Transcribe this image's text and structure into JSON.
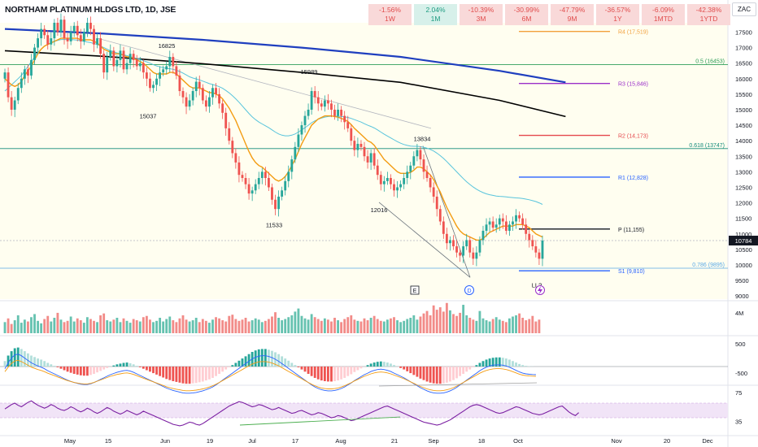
{
  "header": {
    "title": "NORTHAM PLATINUM HLDGS LTD, 1D, JSE",
    "currency": "ZAC"
  },
  "performance": [
    {
      "value": "-1.56%",
      "period": "1W",
      "sign": "neg"
    },
    {
      "value": "2.04%",
      "period": "1M",
      "sign": "pos"
    },
    {
      "value": "-10.39%",
      "period": "3M",
      "sign": "neg"
    },
    {
      "value": "-30.99%",
      "period": "6M",
      "sign": "neg"
    },
    {
      "value": "-47.79%",
      "period": "9M",
      "sign": "neg"
    },
    {
      "value": "-36.57%",
      "period": "1Y",
      "sign": "neg"
    },
    {
      "value": "-6.09%",
      "period": "1MTD",
      "sign": "neg"
    },
    {
      "value": "-42.38%",
      "period": "1YTD",
      "sign": "neg"
    }
  ],
  "chart_data": {
    "type": "candlestick",
    "x_ticks": [
      "May",
      "15",
      "Jun",
      "19",
      "Jul",
      "17",
      "Aug",
      "21",
      "Sep",
      "18",
      "Oct",
      "Nov",
      "20",
      "Dec"
    ],
    "y_ticks": [
      9000,
      9500,
      10000,
      10500,
      11000,
      11500,
      12000,
      12500,
      13000,
      13500,
      14000,
      14500,
      15000,
      15500,
      16000,
      16500,
      17000,
      17500
    ],
    "ylim": [
      8900,
      17800
    ],
    "last_price": 10784,
    "ohlc_close": [
      16200,
      15400,
      15000,
      15300,
      15700,
      16000,
      16300,
      16100,
      16600,
      17000,
      17300,
      17600,
      17400,
      17100,
      17300,
      17800,
      17500,
      17900,
      17300,
      17200,
      17500,
      17700,
      17400,
      17200,
      17500,
      17800,
      17600,
      17100,
      17300,
      16800,
      16200,
      16700,
      16900,
      16400,
      16600,
      16900,
      16300,
      16500,
      16800,
      16600,
      16400,
      16500,
      16200,
      16000,
      15700,
      15800,
      16000,
      16200,
      16300,
      16400,
      16700,
      16400,
      16100,
      15600,
      15400,
      15100,
      15300,
      15600,
      15900,
      15700,
      15300,
      15100,
      15400,
      15700,
      15500,
      15200,
      14900,
      14400,
      14000,
      13600,
      13300,
      12900,
      12800,
      12600,
      12300,
      12400,
      12600,
      12800,
      13000,
      12800,
      12500,
      12100,
      11800,
      12200,
      12400,
      12700,
      13000,
      13400,
      13800,
      14200,
      14500,
      14800,
      15000,
      15600,
      15400,
      15200,
      15100,
      15300,
      15200,
      15000,
      14800,
      15000,
      14800,
      14600,
      14400,
      14000,
      13700,
      13900,
      13800,
      13500,
      13300,
      13600,
      13200,
      12900,
      12600,
      12700,
      12800,
      12600,
      12400,
      12500,
      12600,
      12800,
      13000,
      13200,
      13500,
      13700,
      13400,
      13000,
      12800,
      12500,
      12200,
      11800,
      11400,
      11000,
      10700,
      10800,
      10600,
      10400,
      10300,
      10600,
      10800,
      10400,
      10200,
      10400,
      10800,
      11100,
      11300,
      11400,
      11200,
      11300,
      11500,
      11400,
      11100,
      11300,
      11400,
      11600,
      11500,
      11300,
      11000,
      10800,
      10600,
      10400,
      10200,
      10784
    ],
    "ema20": [
      16000,
      15900,
      15800,
      15750,
      15800,
      15900,
      16100,
      16250,
      16400,
      16600,
      16800,
      16950,
      17050,
      17100,
      17150,
      17200,
      17250,
      17300,
      17300,
      17300,
      17300,
      17300,
      17300,
      17250,
      17250,
      17250,
      17250,
      17200,
      17150,
      17050,
      16950,
      16900,
      16850,
      16800,
      16800,
      16800,
      16750,
      16700,
      16700,
      16650,
      16600,
      16550,
      16500,
      16400,
      16300,
      16200,
      16150,
      16150,
      16150,
      16150,
      16200,
      16200,
      16150,
      16050,
      15950,
      15850,
      15750,
      15700,
      15700,
      15700,
      15650,
      15600,
      15550,
      15550,
      15500,
      15450,
      15350,
      15200,
      15050,
      14850,
      14650,
      14400,
      14150,
      13900,
      13650,
      13450,
      13300,
      13200,
      13150,
      13050,
      12950,
      12850,
      12750,
      12700,
      12750,
      12850,
      13000,
      13200,
      13400,
      13650,
      13900,
      14100,
      14300,
      14500,
      14600,
      14700,
      14750,
      14800,
      14800,
      14800,
      14780,
      14760,
      14720,
      14680,
      14620,
      14520,
      14400,
      14300,
      14200,
      14100,
      14000,
      13950,
      13850,
      13700,
      13550,
      13400,
      13300,
      13200,
      13100,
      13000,
      12950,
      12950,
      12950,
      12980,
      13050,
      13150,
      13150,
      13100,
      13000,
      12900,
      12750,
      12550,
      12350,
      12100,
      11850,
      11650,
      11450,
      11250,
      11100,
      11000,
      10950,
      10900,
      10850,
      10800,
      10800,
      10850,
      10950,
      11050,
      11100,
      11150,
      11200,
      11250,
      11250,
      11250,
      11250,
      11300,
      11300,
      11300,
      11250,
      11200,
      11100,
      11000,
      10950,
      10900
    ],
    "ema50": [
      15600,
      15700,
      15800,
      15900,
      16000,
      16100,
      16250,
      16400,
      16550,
      16700,
      16850,
      16950,
      17050,
      17100,
      17150,
      17200,
      17230,
      17260,
      17260,
      17260,
      17260,
      17250,
      17240,
      17220,
      17200,
      17180,
      17160,
      17130,
      17100,
      17050,
      17000,
      16950,
      16900,
      16860,
      16830,
      16800,
      16770,
      16740,
      16710,
      16680,
      16650,
      16620,
      16580,
      16540,
      16500,
      16450,
      16410,
      16380,
      16350,
      16330,
      16320,
      16300,
      16270,
      16230,
      16180,
      16120,
      16060,
      16020,
      15990,
      15960,
      15920,
      15880,
      15840,
      15810,
      15780,
      15740,
      15690,
      15620,
      15540,
      15450,
      15350,
      15240,
      15120,
      15000,
      14880,
      14770,
      14680,
      14600,
      14540,
      14480,
      14420,
      14350,
      14280,
      14220,
      14180,
      14160,
      14160,
      14180,
      14220,
      14280,
      14350,
      14420,
      14500,
      14580,
      14640,
      14690,
      14730,
      14760,
      14780,
      14790,
      14790,
      14790,
      14780,
      14770,
      14750,
      14720,
      14680,
      14640,
      14600,
      14550,
      14500,
      14460,
      14410,
      14350,
      14280,
      14210,
      14150,
      14090,
      14030,
      13970,
      13920,
      13880,
      13850,
      13830,
      13820,
      13820,
      13810,
      13790,
      13760,
      13720,
      13670,
      13600,
      13520,
      13430,
      13330,
      13220,
      13110,
      13000,
      12890,
      12780,
      12680,
      12590,
      12510,
      12440,
      12380,
      12330,
      12290,
      12260,
      12240,
      12220,
      12210,
      12200,
      12190,
      12180,
      12170,
      12160,
      12150,
      12140,
      12120,
      12100,
      12070,
      12040,
      12000,
      11950
    ],
    "sma200": {
      "x": [
        0,
        30,
        60,
        90,
        120,
        150,
        170
      ],
      "y": [
        16900,
        16720,
        16480,
        16200,
        15880,
        15300,
        14780
      ]
    },
    "sma100": {
      "x": [
        0,
        30,
        60,
        90,
        120,
        150,
        170
      ],
      "y": [
        17600,
        17450,
        17250,
        17000,
        16700,
        16250,
        15880
      ]
    },
    "annotations": [
      {
        "label": "16825",
        "price": 16825
      },
      {
        "label": "15037",
        "price": 15037
      },
      {
        "label": "15989",
        "price": 15989
      },
      {
        "label": "11533",
        "price": 11533
      },
      {
        "label": "12016",
        "price": 12016
      },
      {
        "label": "13834",
        "price": 13834
      },
      {
        "label": "LL?",
        "price": 9650
      }
    ],
    "levels": [
      {
        "label": "R4 (17,519)",
        "price": 17519,
        "color": "#f2a03d"
      },
      {
        "label": "R3 (15,846)",
        "price": 15846,
        "color": "#9b30c9"
      },
      {
        "label": "R2 (14,173)",
        "price": 14173,
        "color": "#e5484d"
      },
      {
        "label": "R1 (12,828)",
        "price": 12828,
        "color": "#2962ff"
      },
      {
        "label": "P (11,155)",
        "price": 11155,
        "color": "#131722"
      },
      {
        "label": "S1 (9,810)",
        "price": 9810,
        "color": "#2962ff"
      }
    ],
    "fib_levels": [
      {
        "label": "0.5 (16453)",
        "price": 16453,
        "color": "#2e9e5a"
      },
      {
        "label": "0.618 (13747)",
        "price": 13747,
        "color": "#128a7a"
      },
      {
        "label": "0.786 (9895)",
        "price": 9895,
        "color": "#5aa9e6"
      }
    ],
    "event_markers": [
      "E",
      "D"
    ],
    "volume": {
      "label": "4M",
      "values": [
        1.8,
        2.4,
        1.5,
        2.1,
        2.9,
        1.7,
        2.2,
        1.9,
        2.6,
        3.1,
        2.0,
        1.6,
        2.3,
        2.8,
        1.9,
        2.5,
        3.3,
        2.2,
        1.8,
        2.0,
        2.7,
        1.9,
        2.4,
        2.1,
        1.7,
        2.6,
        2.3,
        2.0,
        1.8,
        2.9,
        3.2,
        2.1,
        1.9,
        2.2,
        2.5,
        1.8,
        2.4,
        2.0,
        1.7,
        2.3,
        2.1,
        1.9,
        2.6,
        2.8,
        2.2,
        1.8,
        2.0,
        2.5,
        1.9,
        2.3,
        2.7,
        2.1,
        1.8,
        2.4,
        2.9,
        2.2,
        1.9,
        2.1,
        2.5,
        1.8,
        2.3,
        2.0,
        1.7,
        2.2,
        2.6,
        2.4,
        2.1,
        1.9,
        2.8,
        3.0,
        2.3,
        2.0,
        2.2,
        2.5,
        1.9,
        2.1,
        2.4,
        2.2,
        1.8,
        2.0,
        2.3,
        2.7,
        3.4,
        2.5,
        2.1,
        2.3,
        2.6,
        2.9,
        3.5,
        4.0,
        2.8,
        2.4,
        2.2,
        3.1,
        2.6,
        2.3,
        2.0,
        2.4,
        2.2,
        1.9,
        2.5,
        2.1,
        1.8,
        2.3,
        2.6,
        2.9,
        2.2,
        2.0,
        1.9,
        2.4,
        2.1,
        2.5,
        2.8,
        2.3,
        2.0,
        1.9,
        2.2,
        2.4,
        2.6,
        2.1,
        1.8,
        2.0,
        2.3,
        2.5,
        2.9,
        2.2,
        2.7,
        3.2,
        3.6,
        2.9,
        4.5,
        3.8,
        4.2,
        3.5,
        4.9,
        3.7,
        3.1,
        2.8,
        3.3,
        4.6,
        2.9,
        2.5,
        2.2,
        2.0,
        3.6,
        2.4,
        2.1,
        1.9,
        2.3,
        2.6,
        2.2,
        2.0,
        1.8,
        2.4,
        2.7,
        2.9,
        3.2,
        2.5,
        2.1,
        2.3,
        2.8,
        1.9,
        2.2
      ]
    },
    "macd": {
      "labels": [
        "500",
        "-500"
      ],
      "values": [
        150,
        300,
        420,
        500,
        520,
        480,
        420,
        360,
        300,
        260,
        220,
        190,
        150,
        100,
        60,
        20,
        -20,
        -60,
        -100,
        -140,
        -170,
        -200,
        -220,
        -240,
        -250,
        -250,
        -230,
        -200,
        -160,
        -120,
        -80,
        -40,
        0,
        30,
        60,
        80,
        100,
        110,
        90,
        60,
        20,
        -20,
        -60,
        -100,
        -140,
        -180,
        -220,
        -260,
        -300,
        -340,
        -370,
        -400,
        -420,
        -440,
        -460,
        -470,
        -470,
        -460,
        -450,
        -430,
        -410,
        -380,
        -350,
        -310,
        -260,
        -200,
        -140,
        -80,
        -20,
        40,
        100,
        160,
        220,
        280,
        340,
        400,
        440,
        470,
        480,
        480,
        460,
        430,
        390,
        340,
        280,
        220,
        160,
        100,
        40,
        -20,
        -80,
        -140,
        -200,
        -260,
        -310,
        -350,
        -380,
        -400,
        -410,
        -410,
        -400,
        -380,
        -350,
        -310,
        -260,
        -210,
        -150,
        -100,
        -50,
        0,
        40,
        80,
        110,
        130,
        140,
        130,
        110,
        80,
        40,
        0,
        -40,
        -80,
        -130,
        -180,
        -230,
        -280,
        -330,
        -370,
        -410,
        -440,
        -460,
        -470,
        -470,
        -460,
        -440,
        -410,
        -370,
        -320,
        -260,
        -200,
        -140,
        -80,
        -20,
        40,
        100,
        150,
        190,
        220,
        240,
        250,
        250,
        240,
        220,
        190,
        150,
        110,
        70,
        40,
        20,
        10,
        5,
        0
      ]
    },
    "rsi": {
      "labels": [
        "75",
        "35"
      ],
      "values": [
        52,
        55,
        58,
        60,
        57,
        55,
        58,
        61,
        63,
        60,
        57,
        55,
        53,
        55,
        58,
        56,
        53,
        51,
        50,
        52,
        55,
        53,
        50,
        48,
        50,
        53,
        51,
        48,
        46,
        48,
        51,
        54,
        52,
        49,
        47,
        45,
        47,
        50,
        48,
        46,
        44,
        46,
        49,
        47,
        45,
        43,
        41,
        39,
        37,
        35,
        33,
        31,
        30,
        29,
        30,
        32,
        34,
        33,
        31,
        30,
        32,
        35,
        38,
        41,
        44,
        47,
        50,
        53,
        56,
        58,
        60,
        62,
        61,
        59,
        57,
        55,
        56,
        58,
        57,
        55,
        53,
        51,
        52,
        54,
        52,
        50,
        48,
        46,
        47,
        49,
        50,
        48,
        46,
        44,
        45,
        47,
        46,
        44,
        42,
        40,
        41,
        43,
        42,
        40,
        38,
        36,
        37,
        39,
        41,
        43,
        45,
        47,
        49,
        51,
        53,
        55,
        56,
        54,
        52,
        50,
        48,
        46,
        44,
        42,
        40,
        38,
        36,
        34,
        33,
        32,
        31,
        30,
        31,
        33,
        35,
        37,
        40,
        43,
        46,
        49,
        52,
        55,
        57,
        58,
        57,
        55,
        53,
        51,
        49,
        47,
        46,
        47,
        49,
        51,
        53,
        55,
        54,
        52,
        50,
        48,
        46,
        45,
        44,
        45,
        47,
        49,
        51,
        53,
        55,
        56,
        52,
        48,
        45,
        43,
        47
      ]
    }
  },
  "colors": {
    "up": "#26a69a",
    "down": "#ef5350",
    "ema20": "#f39c12",
    "ema50": "#58c4dc",
    "sma100": "#1f3fbf",
    "sma200": "#000000",
    "rsi": "#7b1fa2",
    "rsi_band": "#f1e4f7",
    "price_bg": "#fffef0",
    "macd_line": "#2962ff",
    "signal_line": "#f39c12"
  }
}
